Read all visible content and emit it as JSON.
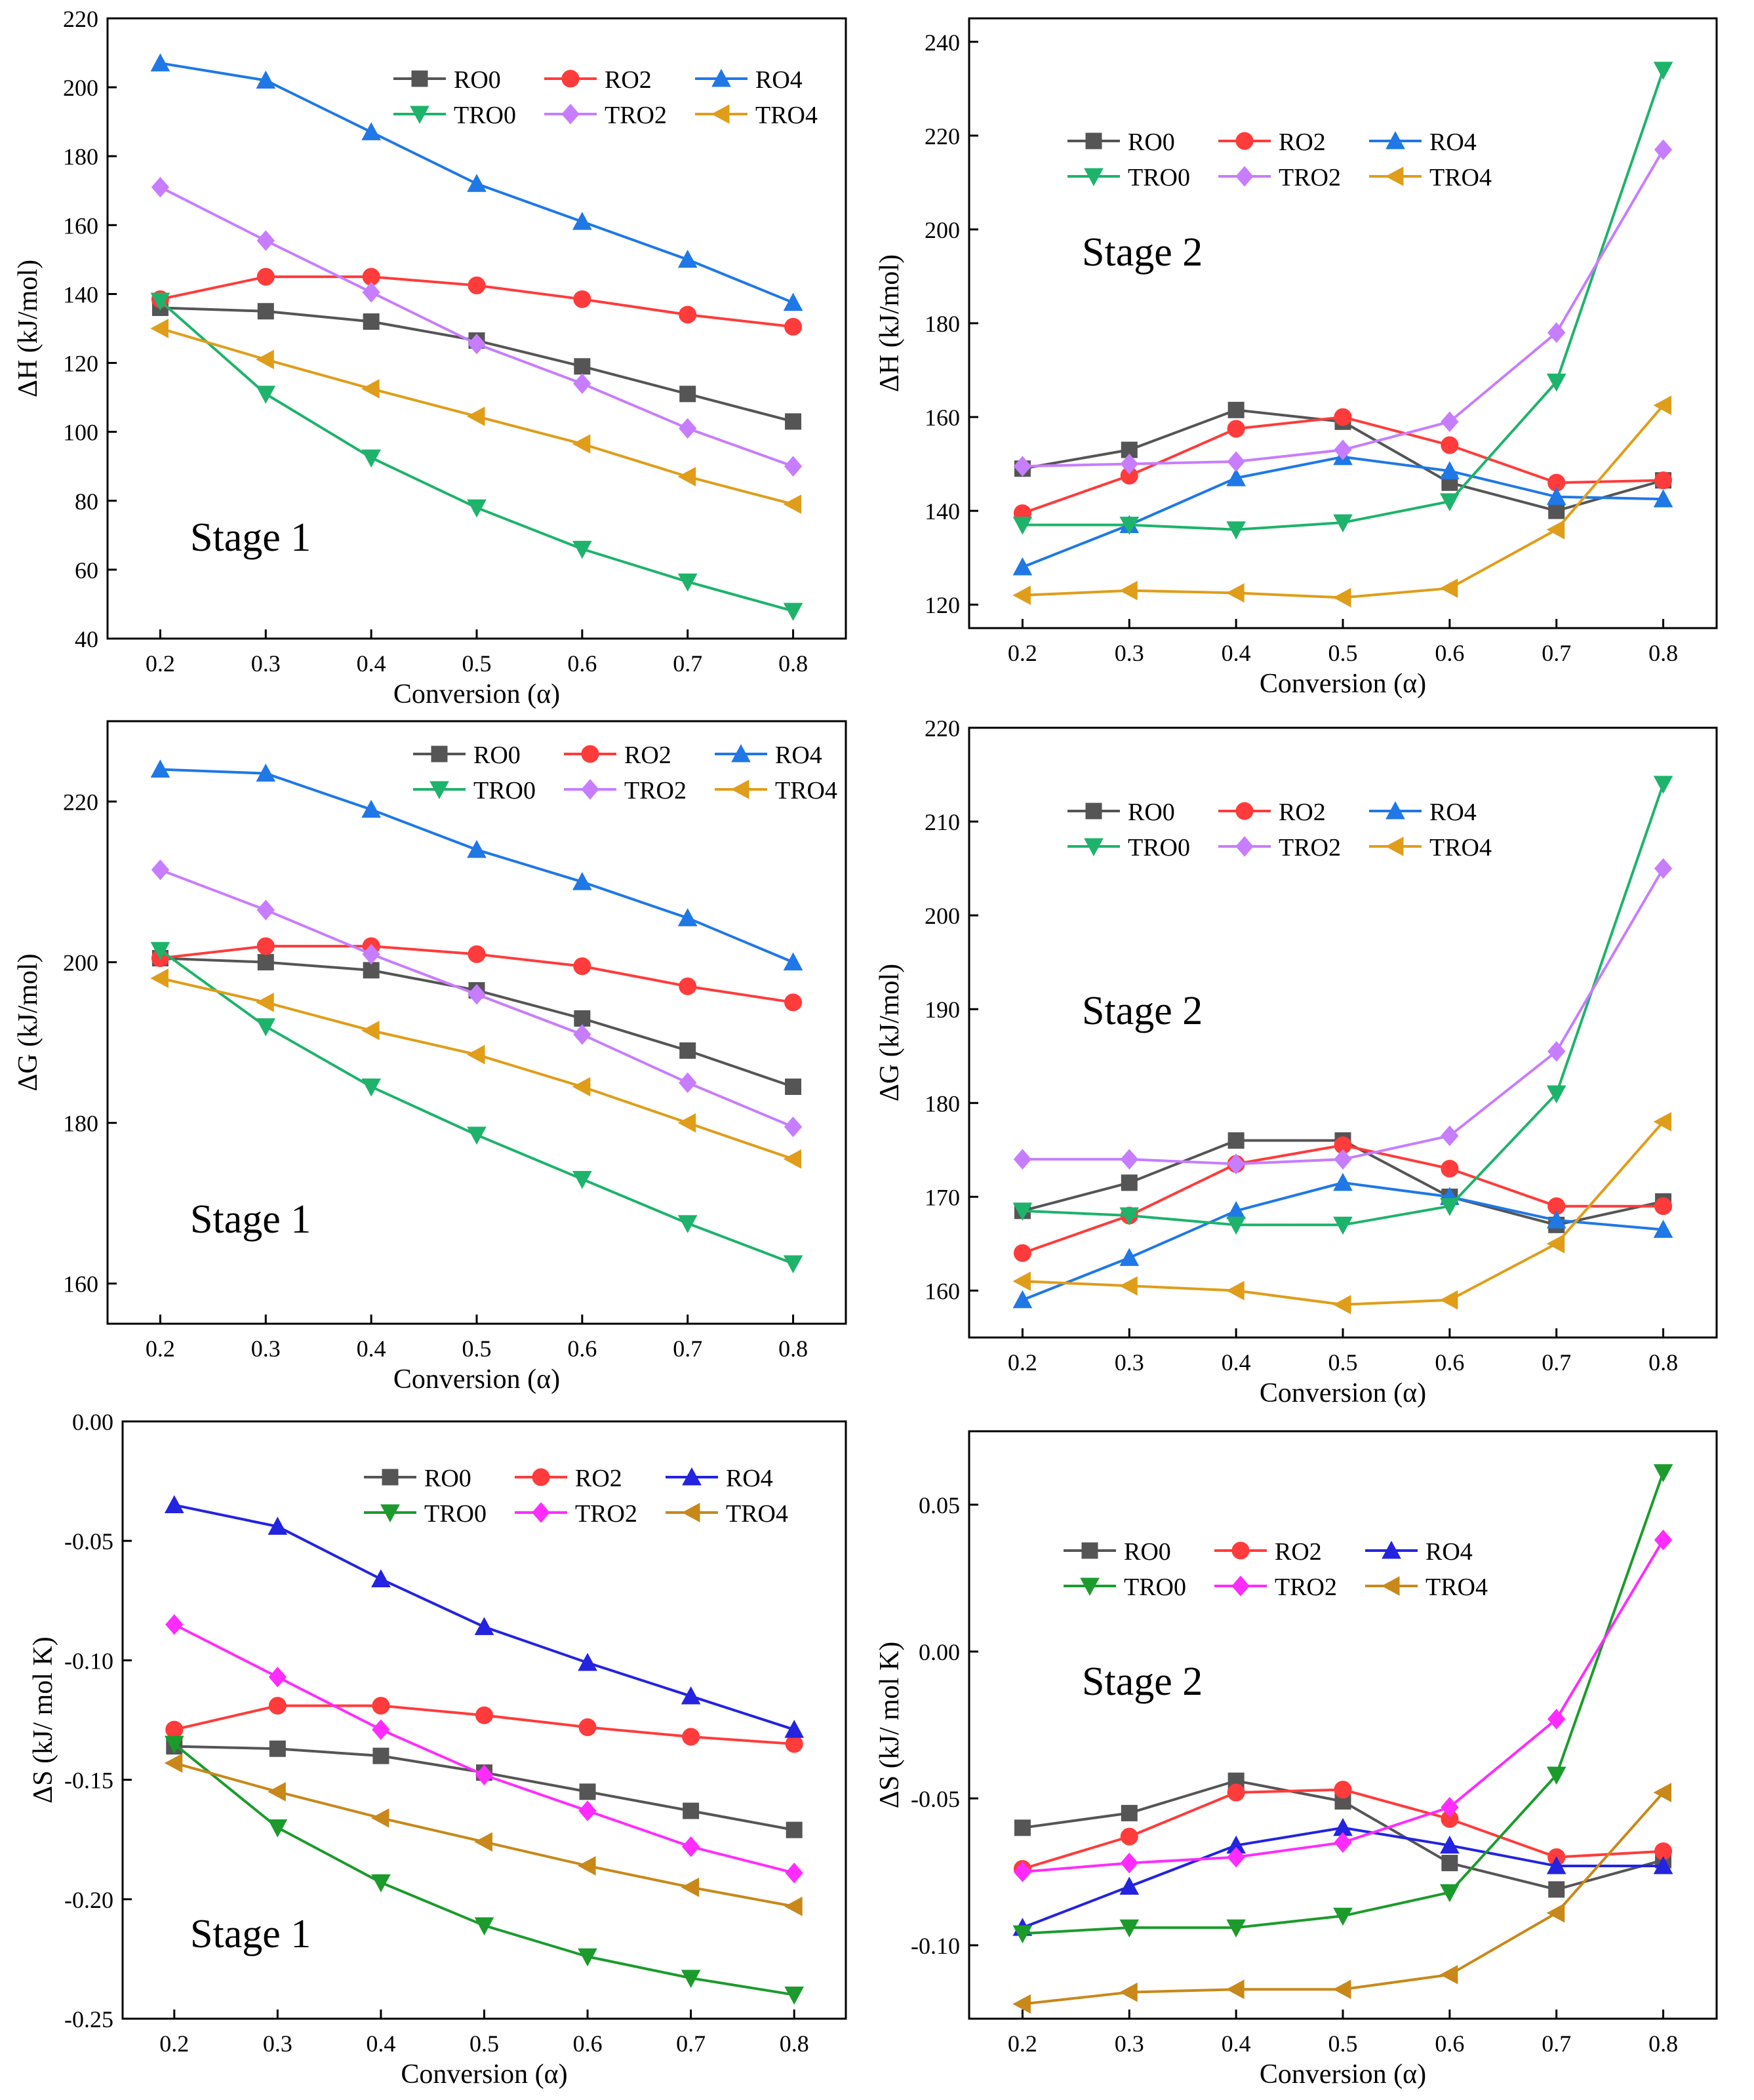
{
  "colors": {
    "RO0": "#555555",
    "RO2": "#ff3b3b",
    "RO4": "#1f78e6",
    "TRO0": "#1db36b",
    "TRO2": "#c77dff",
    "TRO4": "#e09d1a",
    "RO4_dS": "#2323e0",
    "TRO0_dS": "#1b9b2c",
    "TRO2_dS": "#ff2bff",
    "TRO4_dS": "#c8881a",
    "stage_label": "#ff1a1a"
  },
  "chart_data": [
    {
      "type": "line",
      "xlabel": "Conversion (α)",
      "ylabel": "ΔH (kJ/mol)",
      "stage": "Stage 1",
      "ylim": [
        40,
        220
      ],
      "yticks": [
        40,
        60,
        80,
        100,
        120,
        140,
        160,
        180,
        200,
        220
      ],
      "yticklabels": [
        "40",
        "60",
        "80",
        "100",
        "120",
        "140",
        "160",
        "180",
        "200",
        "220"
      ],
      "xlim": [
        0.15,
        0.85
      ],
      "x": [
        0.2,
        0.3,
        0.4,
        0.5,
        0.6,
        0.7,
        0.8
      ],
      "xticklabels": [
        "0.2",
        "0.3",
        "0.4",
        "0.5",
        "0.6",
        "0.7",
        "0.8"
      ],
      "series": [
        {
          "name": "RO0",
          "marker": "square",
          "values": [
            136,
            135,
            132,
            126.5,
            119,
            111,
            103
          ]
        },
        {
          "name": "RO2",
          "marker": "circle",
          "values": [
            138.5,
            145,
            145,
            142.5,
            138.5,
            134,
            130.5
          ]
        },
        {
          "name": "RO4",
          "marker": "triangle-up",
          "values": [
            207,
            202,
            187,
            172,
            161,
            150,
            137.5
          ]
        },
        {
          "name": "TRO0",
          "marker": "triangle-down",
          "values": [
            138,
            111,
            92.5,
            78,
            66,
            56.5,
            48
          ]
        },
        {
          "name": "TRO2",
          "marker": "diamond",
          "values": [
            171,
            155.5,
            140.5,
            125.5,
            114,
            101,
            90
          ]
        },
        {
          "name": "TRO4",
          "marker": "triangle-left",
          "values": [
            130,
            121,
            112.5,
            104.5,
            96.5,
            87,
            79
          ]
        }
      ]
    },
    {
      "type": "line",
      "xlabel": "Conversion (α)",
      "ylabel": "ΔH (kJ/mol)",
      "stage": "Stage 2",
      "ylim": [
        115,
        245
      ],
      "yticks": [
        120,
        140,
        160,
        180,
        200,
        220,
        240
      ],
      "yticklabels": [
        "120",
        "140",
        "160",
        "180",
        "200",
        "220",
        "240"
      ],
      "xlim": [
        0.15,
        0.85
      ],
      "x": [
        0.2,
        0.3,
        0.4,
        0.5,
        0.6,
        0.7,
        0.8
      ],
      "xticklabels": [
        "0.2",
        "0.3",
        "0.4",
        "0.5",
        "0.6",
        "0.7",
        "0.8"
      ],
      "series": [
        {
          "name": "RO0",
          "marker": "square",
          "values": [
            149,
            153,
            161.5,
            159,
            146,
            140,
            146.5
          ]
        },
        {
          "name": "RO2",
          "marker": "circle",
          "values": [
            139.5,
            147.5,
            157.5,
            160,
            154,
            146,
            146.5
          ]
        },
        {
          "name": "RO4",
          "marker": "triangle-up",
          "values": [
            128,
            137,
            147,
            151.5,
            148.5,
            143,
            142.5
          ]
        },
        {
          "name": "TRO0",
          "marker": "triangle-down",
          "values": [
            137,
            137,
            136,
            137.5,
            142,
            167.5,
            234
          ]
        },
        {
          "name": "TRO2",
          "marker": "diamond",
          "values": [
            149.5,
            150,
            150.5,
            153,
            159,
            178,
            217
          ]
        },
        {
          "name": "TRO4",
          "marker": "triangle-left",
          "values": [
            122,
            123,
            122.5,
            121.5,
            123.5,
            136,
            162.5
          ]
        }
      ]
    },
    {
      "type": "line",
      "xlabel": "Conversion (α)",
      "ylabel": "ΔG (kJ/mol)",
      "stage": "Stage 1",
      "ylim": [
        155,
        230
      ],
      "yticks": [
        160,
        180,
        200,
        220
      ],
      "yticklabels": [
        "160",
        "180",
        "200",
        "220"
      ],
      "xlim": [
        0.15,
        0.85
      ],
      "x": [
        0.2,
        0.3,
        0.4,
        0.5,
        0.6,
        0.7,
        0.8
      ],
      "xticklabels": [
        "0.2",
        "0.3",
        "0.4",
        "0.5",
        "0.6",
        "0.7",
        "0.8"
      ],
      "series": [
        {
          "name": "RO0",
          "marker": "square",
          "values": [
            200.5,
            200,
            199,
            196.5,
            193,
            189,
            184.5
          ]
        },
        {
          "name": "RO2",
          "marker": "circle",
          "values": [
            200.5,
            202,
            202,
            201,
            199.5,
            197,
            195
          ]
        },
        {
          "name": "RO4",
          "marker": "triangle-up",
          "values": [
            224,
            223.5,
            219,
            214,
            210,
            205.5,
            200
          ]
        },
        {
          "name": "TRO0",
          "marker": "triangle-down",
          "values": [
            201.5,
            192,
            184.5,
            178.5,
            173,
            167.5,
            162.5
          ]
        },
        {
          "name": "TRO2",
          "marker": "diamond",
          "values": [
            211.5,
            206.5,
            201,
            196,
            191,
            185,
            179.5
          ]
        },
        {
          "name": "TRO4",
          "marker": "triangle-left",
          "values": [
            198,
            195,
            191.5,
            188.5,
            184.5,
            180,
            175.5
          ]
        }
      ]
    },
    {
      "type": "line",
      "xlabel": "Conversion (α)",
      "ylabel": "ΔG (kJ/mol)",
      "stage": "Stage 2",
      "ylim": [
        155,
        220
      ],
      "yticks": [
        160,
        170,
        180,
        190,
        200,
        210,
        220
      ],
      "yticklabels": [
        "160",
        "170",
        "180",
        "190",
        "200",
        "210",
        "220"
      ],
      "xlim": [
        0.15,
        0.85
      ],
      "x": [
        0.2,
        0.3,
        0.4,
        0.5,
        0.6,
        0.7,
        0.8
      ],
      "xticklabels": [
        "0.2",
        "0.3",
        "0.4",
        "0.5",
        "0.6",
        "0.7",
        "0.8"
      ],
      "series": [
        {
          "name": "RO0",
          "marker": "square",
          "values": [
            168.5,
            171.5,
            176,
            176,
            170,
            167,
            169.5
          ]
        },
        {
          "name": "RO2",
          "marker": "circle",
          "values": [
            164,
            168,
            173.5,
            175.5,
            173,
            169,
            169
          ]
        },
        {
          "name": "RO4",
          "marker": "triangle-up",
          "values": [
            159,
            163.5,
            168.5,
            171.5,
            170,
            167.5,
            166.5
          ]
        },
        {
          "name": "TRO0",
          "marker": "triangle-down",
          "values": [
            168.5,
            168,
            167,
            167,
            169,
            181,
            214
          ]
        },
        {
          "name": "TRO2",
          "marker": "diamond",
          "values": [
            174,
            174,
            173.5,
            174,
            176.5,
            185.5,
            205
          ]
        },
        {
          "name": "TRO4",
          "marker": "triangle-left",
          "values": [
            161,
            160.5,
            160,
            158.5,
            159,
            165,
            178
          ]
        }
      ]
    },
    {
      "type": "line",
      "xlabel": "Conversion (α)",
      "ylabel": "ΔS (kJ/ mol K)",
      "stage": "Stage 1",
      "ylim": [
        -0.25,
        0.0
      ],
      "yticks": [
        -0.25,
        -0.2,
        -0.15,
        -0.1,
        -0.05,
        0.0
      ],
      "yticklabels": [
        "-0.25",
        "-0.20",
        "-0.15",
        "-0.10",
        "-0.05",
        "0.00"
      ],
      "xlim": [
        0.15,
        0.85
      ],
      "x": [
        0.2,
        0.3,
        0.4,
        0.5,
        0.6,
        0.7,
        0.8
      ],
      "xticklabels": [
        "0.2",
        "0.3",
        "0.4",
        "0.5",
        "0.6",
        "0.7",
        "0.8"
      ],
      "series": [
        {
          "name": "RO0",
          "marker": "square",
          "values": [
            -0.136,
            -0.137,
            -0.14,
            -0.147,
            -0.155,
            -0.163,
            -0.171
          ]
        },
        {
          "name": "RO2",
          "marker": "circle",
          "values": [
            -0.129,
            -0.119,
            -0.119,
            -0.123,
            -0.128,
            -0.132,
            -0.135
          ]
        },
        {
          "name": "RO4",
          "marker": "triangle-up",
          "values": [
            -0.035,
            -0.044,
            -0.066,
            -0.086,
            -0.101,
            -0.115,
            -0.129
          ]
        },
        {
          "name": "TRO0",
          "marker": "triangle-down",
          "values": [
            -0.135,
            -0.17,
            -0.193,
            -0.211,
            -0.224,
            -0.233,
            -0.24
          ]
        },
        {
          "name": "TRO2",
          "marker": "diamond",
          "values": [
            -0.085,
            -0.107,
            -0.129,
            -0.148,
            -0.163,
            -0.178,
            -0.189
          ]
        },
        {
          "name": "TRO4",
          "marker": "triangle-left",
          "values": [
            -0.143,
            -0.155,
            -0.166,
            -0.176,
            -0.186,
            -0.195,
            -0.203
          ]
        }
      ]
    },
    {
      "type": "line",
      "xlabel": "Conversion (α)",
      "ylabel": "ΔS (kJ/ mol K)",
      "stage": "Stage 2",
      "ylim": [
        -0.125,
        0.075
      ],
      "yticks": [
        -0.1,
        -0.05,
        0.0,
        0.05
      ],
      "yticklabels": [
        "-0.10",
        "-0.05",
        "0.00",
        "0.05"
      ],
      "xlim": [
        0.15,
        0.85
      ],
      "x": [
        0.2,
        0.3,
        0.4,
        0.5,
        0.6,
        0.7,
        0.8
      ],
      "xticklabels": [
        "0.2",
        "0.3",
        "0.4",
        "0.5",
        "0.6",
        "0.7",
        "0.8"
      ],
      "series": [
        {
          "name": "RO0",
          "marker": "square",
          "values": [
            -0.06,
            -0.055,
            -0.044,
            -0.051,
            -0.072,
            -0.081,
            -0.071
          ]
        },
        {
          "name": "RO2",
          "marker": "circle",
          "values": [
            -0.074,
            -0.063,
            -0.048,
            -0.047,
            -0.057,
            -0.07,
            -0.068
          ]
        },
        {
          "name": "RO4",
          "marker": "triangle-up",
          "values": [
            -0.094,
            -0.08,
            -0.066,
            -0.06,
            -0.066,
            -0.073,
            -0.073
          ]
        },
        {
          "name": "TRO0",
          "marker": "triangle-down",
          "values": [
            -0.096,
            -0.094,
            -0.094,
            -0.09,
            -0.082,
            -0.042,
            0.061
          ]
        },
        {
          "name": "TRO2",
          "marker": "diamond",
          "values": [
            -0.075,
            -0.072,
            -0.07,
            -0.065,
            -0.053,
            -0.023,
            0.038
          ]
        },
        {
          "name": "TRO4",
          "marker": "triangle-left",
          "values": [
            -0.12,
            -0.116,
            -0.115,
            -0.115,
            -0.11,
            -0.089,
            -0.048
          ]
        }
      ]
    }
  ]
}
